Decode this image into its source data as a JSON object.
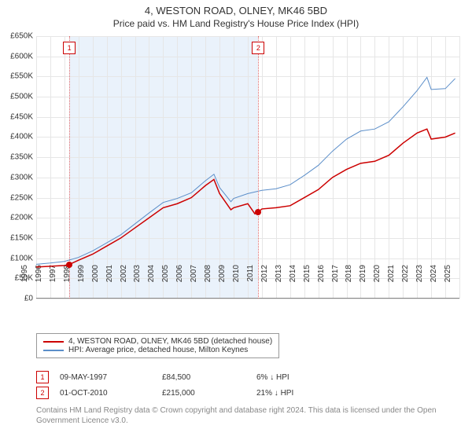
{
  "title": "4, WESTON ROAD, OLNEY, MK46 5BD",
  "subtitle": "Price paid vs. HM Land Registry's House Price Index (HPI)",
  "chart": {
    "type": "line",
    "ylim": [
      0,
      650000
    ],
    "ytick_step": 50000,
    "yticks": [
      "£0",
      "£50K",
      "£100K",
      "£150K",
      "£200K",
      "£250K",
      "£300K",
      "£350K",
      "£400K",
      "£450K",
      "£500K",
      "£550K",
      "£600K",
      "£650K"
    ],
    "xlim": [
      1995,
      2025
    ],
    "xticks": [
      1995,
      1996,
      1997,
      1998,
      1999,
      2000,
      2001,
      2002,
      2003,
      2004,
      2005,
      2006,
      2007,
      2008,
      2009,
      2010,
      2011,
      2012,
      2013,
      2014,
      2015,
      2016,
      2017,
      2018,
      2019,
      2020,
      2021,
      2022,
      2023,
      2024,
      2025
    ],
    "background_color": "#ffffff",
    "grid_color": "#e6e6e6",
    "shaded_range": [
      1997.35,
      2010.75
    ],
    "shade_color": "#eaf2fb",
    "vline_color": "#e06666",
    "series": {
      "property": {
        "label": "4, WESTON ROAD, OLNEY, MK46 5BD (detached house)",
        "color": "#cc0000",
        "width": 1.5,
        "data": [
          [
            1995,
            78000
          ],
          [
            1996,
            80000
          ],
          [
            1997,
            82000
          ],
          [
            1997.35,
            84500
          ],
          [
            1998,
            95000
          ],
          [
            1999,
            110000
          ],
          [
            2000,
            130000
          ],
          [
            2001,
            150000
          ],
          [
            2002,
            175000
          ],
          [
            2003,
            200000
          ],
          [
            2004,
            225000
          ],
          [
            2005,
            235000
          ],
          [
            2006,
            250000
          ],
          [
            2007,
            280000
          ],
          [
            2007.6,
            295000
          ],
          [
            2008,
            260000
          ],
          [
            2008.8,
            220000
          ],
          [
            2009,
            225000
          ],
          [
            2010,
            235000
          ],
          [
            2010.5,
            210000
          ],
          [
            2010.75,
            215000
          ],
          [
            2011,
            222000
          ],
          [
            2012,
            225000
          ],
          [
            2013,
            230000
          ],
          [
            2014,
            250000
          ],
          [
            2015,
            270000
          ],
          [
            2016,
            300000
          ],
          [
            2017,
            320000
          ],
          [
            2018,
            335000
          ],
          [
            2019,
            340000
          ],
          [
            2020,
            355000
          ],
          [
            2021,
            385000
          ],
          [
            2022,
            410000
          ],
          [
            2022.7,
            420000
          ],
          [
            2023,
            395000
          ],
          [
            2024,
            400000
          ],
          [
            2024.7,
            410000
          ]
        ]
      },
      "hpi": {
        "label": "HPI: Average price, detached house, Milton Keynes",
        "color": "#5b8ec9",
        "width": 1,
        "data": [
          [
            1995,
            85000
          ],
          [
            1996,
            88000
          ],
          [
            1997,
            92000
          ],
          [
            1998,
            102000
          ],
          [
            1999,
            118000
          ],
          [
            2000,
            138000
          ],
          [
            2001,
            158000
          ],
          [
            2002,
            185000
          ],
          [
            2003,
            212000
          ],
          [
            2004,
            238000
          ],
          [
            2005,
            248000
          ],
          [
            2006,
            262000
          ],
          [
            2007,
            292000
          ],
          [
            2007.6,
            308000
          ],
          [
            2008,
            275000
          ],
          [
            2008.8,
            240000
          ],
          [
            2009,
            248000
          ],
          [
            2010,
            260000
          ],
          [
            2011,
            268000
          ],
          [
            2012,
            272000
          ],
          [
            2013,
            282000
          ],
          [
            2014,
            305000
          ],
          [
            2015,
            330000
          ],
          [
            2016,
            365000
          ],
          [
            2017,
            395000
          ],
          [
            2018,
            415000
          ],
          [
            2019,
            420000
          ],
          [
            2020,
            438000
          ],
          [
            2021,
            475000
          ],
          [
            2022,
            515000
          ],
          [
            2022.7,
            548000
          ],
          [
            2023,
            518000
          ],
          [
            2024,
            520000
          ],
          [
            2024.7,
            545000
          ]
        ]
      }
    },
    "sales": [
      {
        "n": "1",
        "x": 1997.35,
        "marker_y": 620000,
        "date": "09-MAY-1997",
        "price": "£84,500",
        "delta": "6% ↓ HPI",
        "pt_y": 84500
      },
      {
        "n": "2",
        "x": 2010.75,
        "marker_y": 620000,
        "date": "01-OCT-2010",
        "price": "£215,000",
        "delta": "21% ↓ HPI",
        "pt_y": 215000
      }
    ]
  },
  "legend_items": [
    {
      "color": "#cc0000",
      "key": "chart.series.property.label"
    },
    {
      "color": "#5b8ec9",
      "key": "chart.series.hpi.label"
    }
  ],
  "sale_col_widths": {
    "date": 130,
    "price": 120,
    "delta": 120
  },
  "credit": "Contains HM Land Registry data © Crown copyright and database right 2024. This data is licensed under the Open Government Licence v3.0."
}
